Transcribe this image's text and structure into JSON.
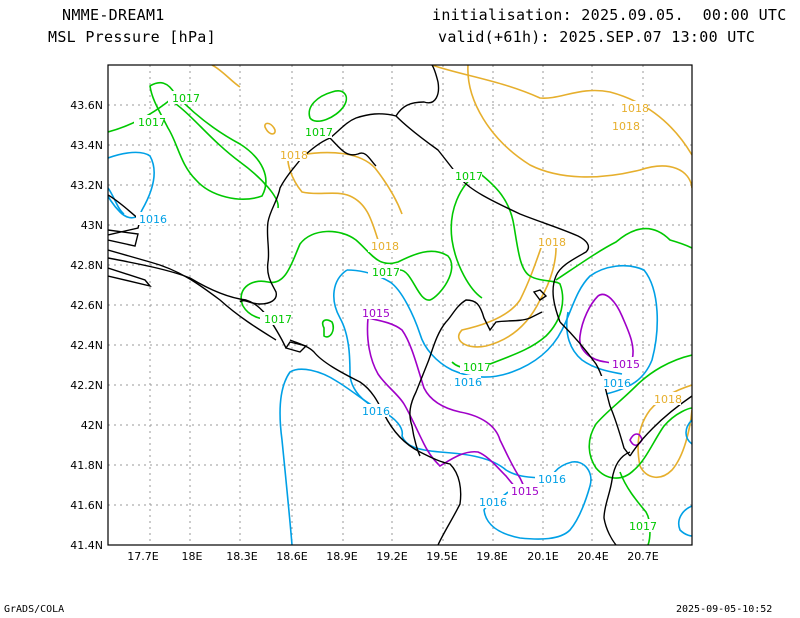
{
  "header": {
    "model": "NMME-DREAM1",
    "field": "MSL Pressure [hPa]",
    "init": "initialisation: 2025.09.05.  00:00 UTC",
    "valid": "valid(+61h): 2025.SEP.07 13:00 UTC"
  },
  "footer": {
    "left": "GrADS/COLA",
    "right": "2025-09-05-10:52"
  },
  "map": {
    "lon_labels": [
      "17.7E",
      "18E",
      "18.3E",
      "18.6E",
      "18.9E",
      "19.2E",
      "19.5E",
      "19.8E",
      "20.1E",
      "20.4E",
      "20.7E"
    ],
    "lat_labels": [
      "43.6N",
      "43.4N",
      "43.2N",
      "43N",
      "42.8N",
      "42.6N",
      "42.4N",
      "42.2N",
      "42N",
      "41.8N",
      "41.6N",
      "41.4N"
    ],
    "contour_labels": {
      "l1015": "1015",
      "l1016": "1016",
      "l1017": "1017",
      "l1018": "1018"
    },
    "colors": {
      "c1015": "#a000c8",
      "c1016": "#00a0e6",
      "c1017": "#00c800",
      "c1018": "#e6af2d",
      "coast": "#000000",
      "grid": "#999999"
    }
  }
}
